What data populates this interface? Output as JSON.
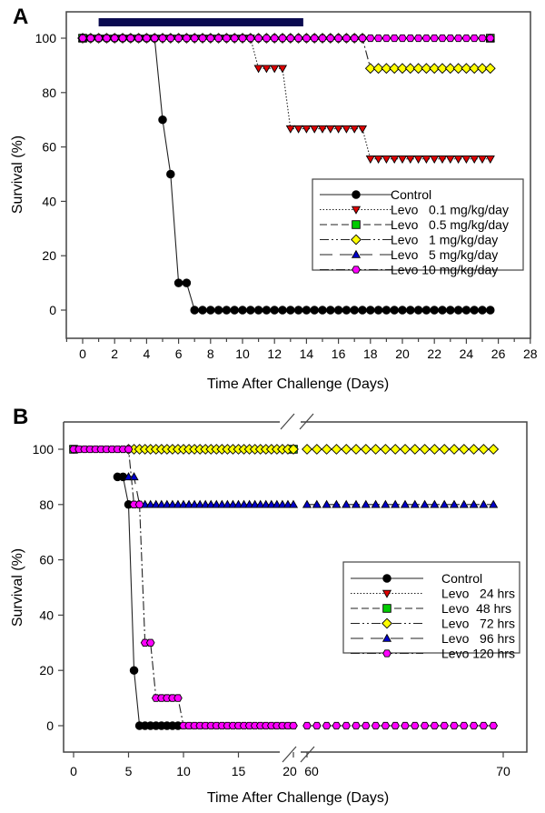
{
  "chart_data": [
    {
      "panel": "A",
      "type": "line",
      "title": "",
      "xlabel": "Time After Challenge (Days)",
      "ylabel": "Survival (%)",
      "xlim": [
        -1,
        28
      ],
      "ylim": [
        -10,
        110
      ],
      "xticks": [
        0,
        2,
        4,
        6,
        8,
        10,
        12,
        14,
        16,
        18,
        20,
        22,
        24,
        26,
        28
      ],
      "yticks": [
        0,
        20,
        40,
        60,
        80,
        100
      ],
      "treatment_bar": {
        "x_start": 1,
        "x_end": 13.8,
        "y": 105,
        "color": "#0a0a50"
      },
      "legend_position": "center-right",
      "series": [
        {
          "name": "Control",
          "marker": "circle",
          "color": "#000000",
          "line": "solid",
          "x": [
            0,
            0.5,
            1,
            1.5,
            2,
            2.5,
            3,
            3.5,
            4,
            4.5,
            5,
            5.5,
            6,
            6.5,
            7,
            7.5,
            8,
            8.5,
            9,
            9.5,
            10,
            10.5,
            11,
            11.5,
            12,
            12.5,
            13,
            13.5,
            14,
            14.5,
            15,
            15.5,
            16,
            16.5,
            17,
            17.5,
            18,
            18.5,
            19,
            19.5,
            20,
            20.5,
            21,
            21.5,
            22,
            22.5,
            23,
            23.5,
            24,
            24.5,
            25,
            25.5
          ],
          "y": [
            100,
            100,
            100,
            100,
            100,
            100,
            100,
            100,
            100,
            100,
            70,
            50,
            10,
            10,
            0,
            0,
            0,
            0,
            0,
            0,
            0,
            0,
            0,
            0,
            0,
            0,
            0,
            0,
            0,
            0,
            0,
            0,
            0,
            0,
            0,
            0,
            0,
            0,
            0,
            0,
            0,
            0,
            0,
            0,
            0,
            0,
            0,
            0,
            0,
            0,
            0,
            0
          ]
        },
        {
          "name": "Levo   0.1 mg/kg/day",
          "marker": "triangle-down",
          "color": "#e00000",
          "line": "dotted",
          "x": [
            0,
            0.5,
            1,
            1.5,
            2,
            2.5,
            3,
            3.5,
            4,
            4.5,
            5,
            5.5,
            6,
            6.5,
            7,
            7.5,
            8,
            8.5,
            9,
            9.5,
            10,
            10.5,
            11,
            11.5,
            12,
            12.5,
            13,
            13.5,
            14,
            14.5,
            15,
            15.5,
            16,
            16.5,
            17,
            17.5,
            18,
            18.5,
            19,
            19.5,
            20,
            20.5,
            21,
            21.5,
            22,
            22.5,
            23,
            23.5,
            24,
            24.5,
            25,
            25.5
          ],
          "y": [
            100,
            100,
            100,
            100,
            100,
            100,
            100,
            100,
            100,
            100,
            100,
            100,
            100,
            100,
            100,
            100,
            100,
            100,
            100,
            100,
            100,
            100,
            88.9,
            88.9,
            88.9,
            88.9,
            66.7,
            66.7,
            66.7,
            66.7,
            66.7,
            66.7,
            66.7,
            66.7,
            66.7,
            66.7,
            55.6,
            55.6,
            55.6,
            55.6,
            55.6,
            55.6,
            55.6,
            55.6,
            55.6,
            55.6,
            55.6,
            55.6,
            55.6,
            55.6,
            55.6,
            55.6
          ]
        },
        {
          "name": "Levo   0.5 mg/kg/day",
          "marker": "square",
          "color": "#00cc00",
          "line": "dashed",
          "x": [
            0,
            25.5
          ],
          "y": [
            100,
            100
          ]
        },
        {
          "name": "Levo   1 mg/kg/day",
          "marker": "diamond",
          "color": "#ffff00",
          "line": "dash-dot-dot",
          "x": [
            0,
            0.5,
            1,
            1.5,
            2,
            2.5,
            3,
            3.5,
            4,
            4.5,
            5,
            5.5,
            6,
            6.5,
            7,
            7.5,
            8,
            8.5,
            9,
            9.5,
            10,
            10.5,
            11,
            11.5,
            12,
            12.5,
            13,
            13.5,
            14,
            14.5,
            15,
            15.5,
            16,
            16.5,
            17,
            17.5,
            18,
            18.5,
            19,
            19.5,
            20,
            20.5,
            21,
            21.5,
            22,
            22.5,
            23,
            23.5,
            24,
            24.5,
            25,
            25.5
          ],
          "y": [
            100,
            100,
            100,
            100,
            100,
            100,
            100,
            100,
            100,
            100,
            100,
            100,
            100,
            100,
            100,
            100,
            100,
            100,
            100,
            100,
            100,
            100,
            100,
            100,
            100,
            100,
            100,
            100,
            100,
            100,
            100,
            100,
            100,
            100,
            100,
            100,
            88.9,
            88.9,
            88.9,
            88.9,
            88.9,
            88.9,
            88.9,
            88.9,
            88.9,
            88.9,
            88.9,
            88.9,
            88.9,
            88.9,
            88.9,
            88.9
          ]
        },
        {
          "name": "Levo   5 mg/kg/day",
          "marker": "triangle-up",
          "color": "#0000cc",
          "line": "long-dash",
          "x": [
            0,
            25.5
          ],
          "y": [
            100,
            100
          ]
        },
        {
          "name": "Levo 10 mg/kg/day",
          "marker": "hexagon",
          "color": "#ff00ff",
          "line": "dash-dot",
          "x": [
            0,
            0.5,
            1,
            1.5,
            2,
            2.5,
            3,
            3.5,
            4,
            4.5,
            5,
            5.5,
            6,
            6.5,
            7,
            7.5,
            8,
            8.5,
            9,
            9.5,
            10,
            10.5,
            11,
            11.5,
            12,
            12.5,
            13,
            13.5,
            14,
            14.5,
            15,
            15.5,
            16,
            16.5,
            17,
            17.5,
            18,
            18.5,
            19,
            19.5,
            20,
            20.5,
            21,
            21.5,
            22,
            22.5,
            23,
            23.5,
            24,
            24.5,
            25,
            25.5
          ],
          "y": [
            100,
            100,
            100,
            100,
            100,
            100,
            100,
            100,
            100,
            100,
            100,
            100,
            100,
            100,
            100,
            100,
            100,
            100,
            100,
            100,
            100,
            100,
            100,
            100,
            100,
            100,
            100,
            100,
            100,
            100,
            100,
            100,
            100,
            100,
            100,
            100,
            100,
            100,
            100,
            100,
            100,
            100,
            100,
            100,
            100,
            100,
            100,
            100,
            100,
            100,
            100,
            100
          ]
        }
      ]
    },
    {
      "panel": "B",
      "type": "line",
      "title": "",
      "xlabel": "Time After Challenge (Days)",
      "ylabel": "Survival (%)",
      "xlim_segment1": [
        -0.5,
        20.5
      ],
      "xlim_segment2": [
        59.5,
        70.5
      ],
      "axis_break": "between 20 and 60",
      "ylim": [
        -10,
        110
      ],
      "xticks": [
        0,
        5,
        10,
        15,
        20,
        60,
        70
      ],
      "yticks": [
        0,
        20,
        40,
        60,
        80,
        100
      ],
      "legend_position": "lower-right",
      "series": [
        {
          "name": "Control",
          "marker": "circle",
          "color": "#000000",
          "line": "solid",
          "x": [
            4,
            4.5,
            5,
            5.5,
            6,
            6.5,
            7,
            7.5,
            8,
            8.5,
            9,
            9.5
          ],
          "y": [
            90,
            90,
            80,
            20,
            0,
            0,
            0,
            0,
            0,
            0,
            0,
            0
          ]
        },
        {
          "name": "Levo   24 hrs",
          "marker": "triangle-down",
          "color": "#e00000",
          "line": "dotted",
          "x": [
            0,
            20
          ],
          "y": [
            100,
            100
          ]
        },
        {
          "name": "Levo  48 hrs",
          "marker": "square",
          "color": "#00cc00",
          "line": "dashed",
          "x": [
            0,
            20
          ],
          "y": [
            100,
            100
          ]
        },
        {
          "name": "Levo   72 hrs",
          "marker": "diamond",
          "color": "#ffff00",
          "line": "dash-dot-dot",
          "x": [
            5,
            5.5,
            6,
            6.5,
            7,
            7.5,
            8,
            8.5,
            9,
            9.5,
            10,
            10.5,
            11,
            11.5,
            12,
            12.5,
            13,
            13.5,
            14,
            14.5,
            15,
            15.5,
            16,
            16.5,
            17,
            17.5,
            18,
            18.5,
            19,
            19.5,
            20,
            60,
            60.5,
            61,
            61.5,
            62,
            62.5,
            63,
            63.5,
            64,
            64.5,
            65,
            65.5,
            66,
            66.5,
            67,
            67.5,
            68,
            68.5,
            69,
            69.5
          ],
          "y": [
            100,
            100,
            100,
            100,
            100,
            100,
            100,
            100,
            100,
            100,
            100,
            100,
            100,
            100,
            100,
            100,
            100,
            100,
            100,
            100,
            100,
            100,
            100,
            100,
            100,
            100,
            100,
            100,
            100,
            100,
            100,
            100,
            100,
            100,
            100,
            100,
            100,
            100,
            100,
            100,
            100,
            100,
            100,
            100,
            100,
            100,
            100,
            100,
            100,
            100,
            100
          ]
        },
        {
          "name": "Levo   96 hrs",
          "marker": "triangle-up",
          "color": "#0000cc",
          "line": "long-dash",
          "x": [
            5,
            5.5,
            6,
            6.5,
            7,
            7.5,
            8,
            8.5,
            9,
            9.5,
            10,
            10.5,
            11,
            11.5,
            12,
            12.5,
            13,
            13.5,
            14,
            14.5,
            15,
            15.5,
            16,
            16.5,
            17,
            17.5,
            18,
            18.5,
            19,
            19.5,
            20,
            60,
            60.5,
            61,
            61.5,
            62,
            62.5,
            63,
            63.5,
            64,
            64.5,
            65,
            65.5,
            66,
            66.5,
            67,
            67.5,
            68,
            68.5,
            69,
            69.5
          ],
          "y": [
            90,
            90,
            80,
            80,
            80,
            80,
            80,
            80,
            80,
            80,
            80,
            80,
            80,
            80,
            80,
            80,
            80,
            80,
            80,
            80,
            80,
            80,
            80,
            80,
            80,
            80,
            80,
            80,
            80,
            80,
            80,
            80,
            80,
            80,
            80,
            80,
            80,
            80,
            80,
            80,
            80,
            80,
            80,
            80,
            80,
            80,
            80,
            80,
            80,
            80,
            80
          ]
        },
        {
          "name": "Levo 120 hrs",
          "marker": "hexagon",
          "color": "#ff00ff",
          "line": "dash-dot",
          "x": [
            0,
            0.5,
            1,
            1.5,
            2,
            2.5,
            3,
            3.5,
            4,
            4.5,
            5,
            5.5,
            6,
            6.5,
            7,
            7.5,
            8,
            8.5,
            9,
            9.5,
            10,
            10.5,
            11,
            11.5,
            12,
            12.5,
            13,
            13.5,
            14,
            14.5,
            15,
            15.5,
            16,
            16.5,
            17,
            17.5,
            18,
            18.5,
            19,
            19.5,
            20,
            60,
            60.5,
            61,
            61.5,
            62,
            62.5,
            63,
            63.5,
            64,
            64.5,
            65,
            65.5,
            66,
            66.5,
            67,
            67.5,
            68,
            68.5,
            69,
            69.5
          ],
          "y": [
            100,
            100,
            100,
            100,
            100,
            100,
            100,
            100,
            100,
            100,
            100,
            80,
            80,
            30,
            30,
            10,
            10,
            10,
            10,
            10,
            0,
            0,
            0,
            0,
            0,
            0,
            0,
            0,
            0,
            0,
            0,
            0,
            0,
            0,
            0,
            0,
            0,
            0,
            0,
            0,
            0,
            0,
            0,
            0,
            0,
            0,
            0,
            0,
            0,
            0,
            0,
            0,
            0,
            0,
            0,
            0,
            0,
            0,
            0,
            0,
            0
          ]
        }
      ]
    }
  ]
}
